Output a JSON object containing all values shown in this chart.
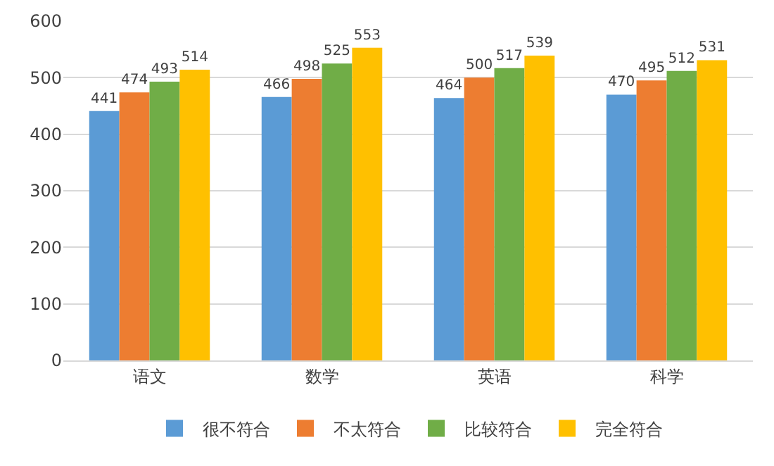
{
  "chart_data": {
    "type": "bar",
    "categories": [
      "语文",
      "数学",
      "英语",
      "科学"
    ],
    "series": [
      {
        "name": "很不符合",
        "color": "#5b9bd5",
        "values": [
          441,
          466,
          464,
          470
        ]
      },
      {
        "name": "不太符合",
        "color": "#ed7d31",
        "values": [
          474,
          498,
          500,
          495
        ]
      },
      {
        "name": "比较符合",
        "color": "#70ad47",
        "values": [
          493,
          525,
          517,
          512
        ]
      },
      {
        "name": "完全符合",
        "color": "#ffc000",
        "values": [
          514,
          553,
          539,
          531
        ]
      }
    ],
    "ylim": [
      0,
      600
    ],
    "yticks": [
      0,
      100,
      200,
      300,
      400,
      500,
      600
    ],
    "grid": "y",
    "legend": "bottom",
    "data_labels": true
  }
}
